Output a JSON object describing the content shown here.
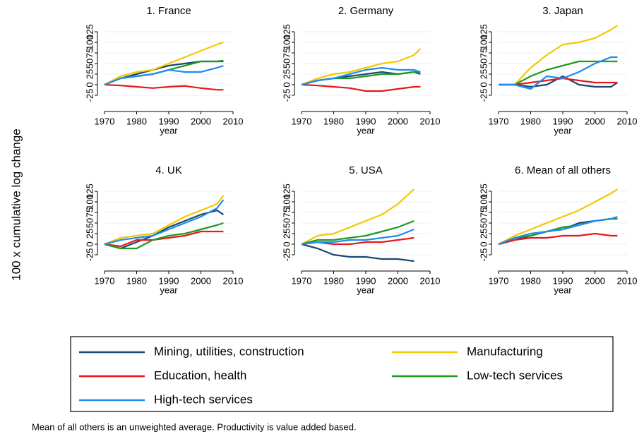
{
  "y_label": "100 x cumulative log change",
  "note": "Mean of all others is an unweighted average. Productivity is value added based.",
  "chart_data": [
    {
      "type": "line",
      "title": "1. France",
      "x_label": "year",
      "x": [
        1970,
        1975,
        1980,
        1985,
        1990,
        1995,
        2000,
        2005,
        2007
      ],
      "xlim": [
        1970,
        2010
      ],
      "xticks": [
        1970,
        1980,
        1990,
        2000,
        2010
      ],
      "ylim": [
        -50,
        140
      ],
      "yticks": [
        -25,
        0,
        25,
        50,
        75,
        100,
        125
      ],
      "grid": true,
      "series": [
        {
          "name": "Mining, utilities, construction",
          "color": "#1a476f",
          "values": [
            0,
            15,
            25,
            35,
            45,
            50,
            55,
            55,
            55
          ]
        },
        {
          "name": "Manufacturing",
          "color": "#f5c800",
          "values": [
            0,
            20,
            30,
            35,
            50,
            65,
            80,
            95,
            100
          ]
        },
        {
          "name": "Education, health",
          "color": "#e8171c",
          "values": [
            0,
            -2,
            -5,
            -8,
            -5,
            -3,
            -8,
            -12,
            -12
          ]
        },
        {
          "name": "Low-tech services",
          "color": "#1e9a1e",
          "values": [
            0,
            15,
            20,
            25,
            35,
            45,
            55,
            55,
            57
          ]
        },
        {
          "name": "High-tech services",
          "color": "#1e8cf0",
          "values": [
            0,
            15,
            20,
            25,
            35,
            30,
            30,
            40,
            45
          ]
        }
      ]
    },
    {
      "type": "line",
      "title": "2. Germany",
      "x_label": "year",
      "x": [
        1970,
        1975,
        1980,
        1985,
        1990,
        1995,
        2000,
        2005,
        2007
      ],
      "xlim": [
        1970,
        2010
      ],
      "xticks": [
        1970,
        1980,
        1990,
        2000,
        2010
      ],
      "ylim": [
        -50,
        140
      ],
      "yticks": [
        -25,
        0,
        25,
        50,
        75,
        100,
        125
      ],
      "grid": true,
      "series": [
        {
          "name": "Mining, utilities, construction",
          "color": "#1a476f",
          "values": [
            0,
            10,
            15,
            20,
            25,
            30,
            25,
            30,
            25
          ]
        },
        {
          "name": "Manufacturing",
          "color": "#f5c800",
          "values": [
            0,
            15,
            25,
            30,
            40,
            50,
            55,
            70,
            85
          ]
        },
        {
          "name": "Education, health",
          "color": "#e8171c",
          "values": [
            0,
            -2,
            -5,
            -8,
            -15,
            -15,
            -10,
            -5,
            -5
          ]
        },
        {
          "name": "Low-tech services",
          "color": "#1e9a1e",
          "values": [
            0,
            10,
            15,
            15,
            20,
            25,
            25,
            30,
            30
          ]
        },
        {
          "name": "High-tech services",
          "color": "#1e8cf0",
          "values": [
            0,
            10,
            15,
            25,
            35,
            40,
            35,
            35,
            30
          ]
        }
      ]
    },
    {
      "type": "line",
      "title": "3. Japan",
      "x_label": "year",
      "x": [
        1970,
        1975,
        1980,
        1985,
        1990,
        1995,
        2000,
        2005,
        2007
      ],
      "xlim": [
        1970,
        2010
      ],
      "xticks": [
        1970,
        1980,
        1990,
        2000,
        2010
      ],
      "ylim": [
        -50,
        140
      ],
      "yticks": [
        -25,
        0,
        25,
        50,
        75,
        100,
        125
      ],
      "grid": true,
      "series": [
        {
          "name": "Mining, utilities, construction",
          "color": "#1a476f",
          "values": [
            0,
            0,
            -5,
            0,
            20,
            0,
            -5,
            -5,
            5
          ]
        },
        {
          "name": "Manufacturing",
          "color": "#f5c800",
          "values": [
            0,
            0,
            40,
            70,
            95,
            100,
            110,
            130,
            140
          ]
        },
        {
          "name": "Education, health",
          "color": "#e8171c",
          "values": [
            0,
            0,
            5,
            10,
            15,
            10,
            5,
            5,
            5
          ]
        },
        {
          "name": "Low-tech services",
          "color": "#1e9a1e",
          "values": [
            0,
            0,
            20,
            35,
            45,
            55,
            55,
            55,
            55
          ]
        },
        {
          "name": "High-tech services",
          "color": "#1e8cf0",
          "values": [
            0,
            0,
            -10,
            20,
            15,
            30,
            50,
            65,
            65
          ]
        }
      ]
    },
    {
      "type": "line",
      "title": "4. UK",
      "x_label": "year",
      "x": [
        1970,
        1975,
        1980,
        1985,
        1990,
        1995,
        2000,
        2005,
        2007
      ],
      "xlim": [
        1970,
        2010
      ],
      "xticks": [
        1970,
        1980,
        1990,
        2000,
        2010
      ],
      "ylim": [
        -50,
        140
      ],
      "yticks": [
        -25,
        0,
        25,
        50,
        75,
        100,
        125
      ],
      "grid": true,
      "series": [
        {
          "name": "Mining, utilities, construction",
          "color": "#1a476f",
          "values": [
            0,
            -10,
            5,
            20,
            40,
            55,
            70,
            80,
            70
          ]
        },
        {
          "name": "Manufacturing",
          "color": "#f5c800",
          "values": [
            0,
            15,
            20,
            25,
            45,
            65,
            80,
            95,
            115
          ]
        },
        {
          "name": "Education, health",
          "color": "#e8171c",
          "values": [
            0,
            -5,
            10,
            10,
            15,
            20,
            30,
            30,
            30
          ]
        },
        {
          "name": "Low-tech services",
          "color": "#1e9a1e",
          "values": [
            0,
            -10,
            -10,
            10,
            20,
            25,
            35,
            45,
            50
          ]
        },
        {
          "name": "High-tech services",
          "color": "#1e8cf0",
          "values": [
            0,
            10,
            15,
            20,
            35,
            50,
            65,
            85,
            105
          ]
        }
      ]
    },
    {
      "type": "line",
      "title": "5. USA",
      "x_label": "year",
      "x": [
        1970,
        1975,
        1980,
        1985,
        1990,
        1995,
        2000,
        2005,
        2007
      ],
      "xlim": [
        1970,
        2010
      ],
      "xticks": [
        1970,
        1980,
        1990,
        2000,
        2010
      ],
      "ylim": [
        -50,
        140
      ],
      "yticks": [
        -25,
        0,
        25,
        50,
        75,
        100,
        125
      ],
      "grid": true,
      "series": [
        {
          "name": "Mining, utilities, construction",
          "color": "#1a476f",
          "values": [
            0,
            -10,
            -25,
            -30,
            -30,
            -35,
            -35,
            -40,
            null
          ]
        },
        {
          "name": "Manufacturing",
          "color": "#f5c800",
          "values": [
            0,
            20,
            25,
            40,
            55,
            70,
            95,
            130,
            null
          ]
        },
        {
          "name": "Education, health",
          "color": "#e8171c",
          "values": [
            0,
            5,
            0,
            0,
            5,
            5,
            10,
            15,
            null
          ]
        },
        {
          "name": "Low-tech services",
          "color": "#1e9a1e",
          "values": [
            0,
            10,
            10,
            15,
            20,
            30,
            40,
            55,
            null
          ]
        },
        {
          "name": "High-tech services",
          "color": "#1e8cf0",
          "values": [
            0,
            5,
            5,
            10,
            10,
            15,
            20,
            35,
            null
          ]
        }
      ]
    },
    {
      "type": "line",
      "title": "6. Mean of all others",
      "x_label": "year",
      "x": [
        1970,
        1975,
        1980,
        1985,
        1990,
        1995,
        2000,
        2005,
        2007
      ],
      "xlim": [
        1970,
        2010
      ],
      "xticks": [
        1970,
        1980,
        1990,
        2000,
        2010
      ],
      "ylim": [
        -50,
        140
      ],
      "yticks": [
        -25,
        0,
        25,
        50,
        75,
        100,
        125
      ],
      "grid": true,
      "series": [
        {
          "name": "Mining, utilities, construction",
          "color": "#1a476f",
          "values": [
            0,
            10,
            20,
            30,
            35,
            50,
            55,
            60,
            60
          ]
        },
        {
          "name": "Manufacturing",
          "color": "#f5c800",
          "values": [
            0,
            20,
            35,
            50,
            65,
            80,
            100,
            120,
            130
          ]
        },
        {
          "name": "Education, health",
          "color": "#e8171c",
          "values": [
            0,
            10,
            15,
            15,
            20,
            20,
            25,
            20,
            20
          ]
        },
        {
          "name": "Low-tech services",
          "color": "#1e9a1e",
          "values": [
            0,
            15,
            20,
            30,
            40,
            45,
            55,
            60,
            60
          ]
        },
        {
          "name": "High-tech services",
          "color": "#1e8cf0",
          "values": [
            0,
            15,
            25,
            30,
            35,
            45,
            55,
            60,
            65
          ]
        }
      ]
    }
  ]
}
